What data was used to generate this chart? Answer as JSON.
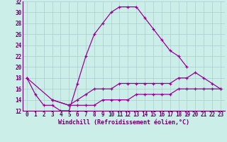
{
  "xlabel": "Windchill (Refroidissement éolien,°C)",
  "background_color": "#cceee8",
  "grid_color": "#aacccc",
  "line_color": "#990099",
  "x_values": [
    0,
    1,
    2,
    3,
    4,
    5,
    6,
    7,
    8,
    9,
    10,
    11,
    12,
    13,
    14,
    15,
    16,
    17,
    18,
    19,
    20,
    21,
    22,
    23
  ],
  "line1": [
    18,
    15,
    13,
    13,
    12,
    12,
    17,
    22,
    26,
    28,
    30,
    31,
    31,
    31,
    29,
    27,
    25,
    23,
    22,
    20,
    null,
    null,
    null,
    null
  ],
  "line2": [
    18,
    null,
    null,
    14,
    null,
    13,
    14,
    15,
    16,
    16,
    16,
    17,
    17,
    17,
    17,
    17,
    17,
    17,
    18,
    18,
    19,
    18,
    17,
    16
  ],
  "line3": [
    null,
    null,
    null,
    14,
    null,
    13,
    13,
    13,
    13,
    14,
    14,
    14,
    14,
    15,
    15,
    15,
    15,
    15,
    16,
    16,
    16,
    16,
    16,
    16
  ],
  "ylim": [
    12,
    32
  ],
  "xlim": [
    -0.5,
    23.5
  ],
  "yticks": [
    12,
    14,
    16,
    18,
    20,
    22,
    24,
    26,
    28,
    30,
    32
  ],
  "xticks": [
    0,
    1,
    2,
    3,
    4,
    5,
    6,
    7,
    8,
    9,
    10,
    11,
    12,
    13,
    14,
    15,
    16,
    17,
    18,
    19,
    20,
    21,
    22,
    23
  ],
  "tick_fontsize": 5.5,
  "xlabel_fontsize": 6.0,
  "tick_color": "#660066",
  "spine_color": "#660066"
}
